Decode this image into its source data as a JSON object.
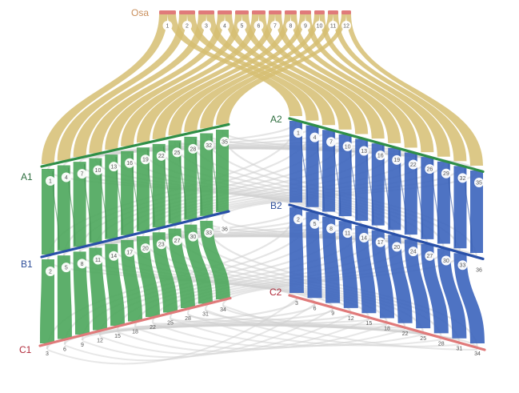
{
  "colors": {
    "osa": "#d6be72",
    "osa_label": "#c98f5c",
    "a_label": "#2e6e3f",
    "b_label": "#2e4f9a",
    "c_label": "#b12b3b",
    "green": "#4fa85e",
    "blue": "#3f67be",
    "grey": "#cfcfcf",
    "bar_red": "#e07a7a",
    "bar_green": "#2f8f48",
    "bar_blue": "#2950a8"
  },
  "genomes": {
    "osa": {
      "label": "Osa",
      "chromosomes": [
        "1",
        "2",
        "3",
        "4",
        "5",
        "6",
        "7",
        "8",
        "9",
        "10",
        "11",
        "12"
      ]
    },
    "a1": {
      "label": "A1",
      "chromosomes": [
        "1",
        "4",
        "7",
        "10",
        "13",
        "16",
        "19",
        "22",
        "25",
        "28",
        "32",
        "35"
      ]
    },
    "b1": {
      "label": "B1",
      "chromosomes": [
        "2",
        "5",
        "8",
        "11",
        "14",
        "17",
        "20",
        "23",
        "27",
        "30",
        "33",
        "36"
      ]
    },
    "c1": {
      "label": "C1",
      "chromosomes": [
        "3",
        "6",
        "9",
        "12",
        "15",
        "18",
        "22",
        "25",
        "28",
        "31",
        "34"
      ]
    },
    "a2": {
      "label": "A2",
      "chromosomes": [
        "1",
        "4",
        "7",
        "10",
        "13",
        "16",
        "19",
        "22",
        "26",
        "29",
        "32",
        "35"
      ]
    },
    "b2": {
      "label": "B2",
      "chromosomes": [
        "2",
        "5",
        "8",
        "11",
        "14",
        "17",
        "20",
        "24",
        "27",
        "30",
        "33",
        "36"
      ]
    },
    "c2": {
      "label": "C2",
      "chromosomes": [
        "3",
        "6",
        "9",
        "12",
        "15",
        "18",
        "22",
        "25",
        "28",
        "31",
        "34"
      ]
    }
  }
}
